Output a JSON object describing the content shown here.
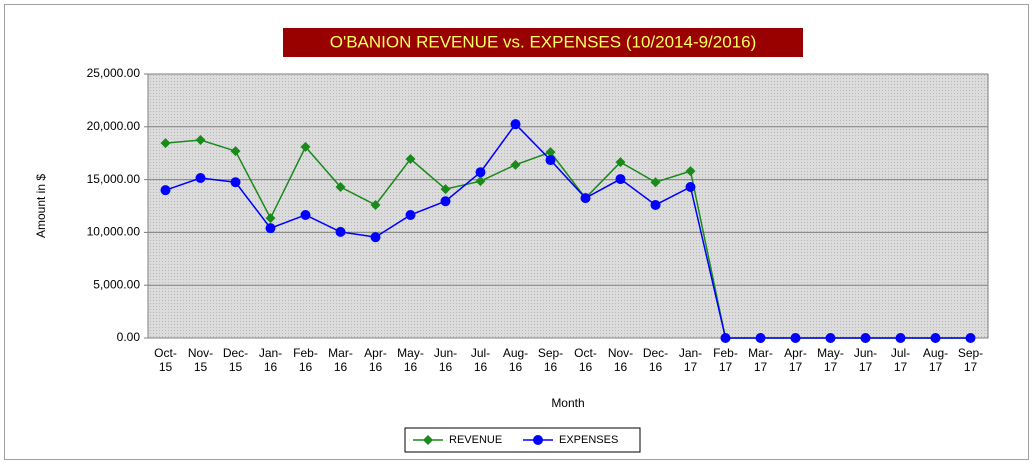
{
  "chart_data": {
    "type": "line",
    "title": "O'BANION REVENUE vs. EXPENSES (10/2014-9/2016)",
    "x_label": "Month",
    "y_label": "Amount in $",
    "categories": [
      "Oct-15",
      "Nov-15",
      "Dec-15",
      "Jan-16",
      "Feb-16",
      "Mar-16",
      "Apr-16",
      "May-16",
      "Jun-16",
      "Jul-16",
      "Aug-16",
      "Sep-16",
      "Oct-16",
      "Nov-16",
      "Dec-16",
      "Jan-17",
      "Feb-17",
      "Mar-17",
      "Apr-17",
      "May-17",
      "Jun-17",
      "Jul-17",
      "Aug-17",
      "Sep-17"
    ],
    "series": [
      {
        "name": "REVENUE",
        "color": "#1a8a1a",
        "marker": "diamond",
        "values": [
          18450,
          18750,
          17700,
          11350,
          18100,
          14300,
          12600,
          16950,
          14100,
          14850,
          16400,
          17600,
          13250,
          16650,
          14750,
          15800,
          0,
          0,
          0,
          0,
          0,
          0,
          0,
          0
        ]
      },
      {
        "name": "EXPENSES",
        "color": "#0000ff",
        "marker": "circle",
        "values": [
          14000,
          15150,
          14750,
          10400,
          11650,
          10050,
          9550,
          11650,
          12950,
          15700,
          20250,
          16850,
          13250,
          15050,
          12600,
          14300,
          0,
          0,
          0,
          0,
          0,
          0,
          0,
          0
        ]
      }
    ],
    "ylim": [
      0,
      25000
    ],
    "yticks": [
      {
        "value": 0,
        "label": "0.00"
      },
      {
        "value": 5000,
        "label": "5,000.00"
      },
      {
        "value": 10000,
        "label": "10,000.00"
      },
      {
        "value": 15000,
        "label": "15,000.00"
      },
      {
        "value": 20000,
        "label": "20,000.00"
      },
      {
        "value": 25000,
        "label": "25,000.00"
      }
    ],
    "grid": true,
    "legend": "bottom"
  }
}
